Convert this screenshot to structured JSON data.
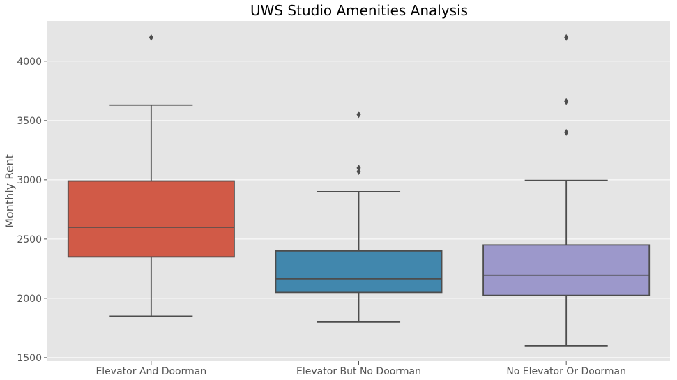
{
  "chart_data": {
    "type": "box",
    "title": "UWS Studio Amenities Analysis",
    "xlabel": "",
    "ylabel": "Monthly Rent",
    "ylim": [
      1470,
      4340
    ],
    "yticks": [
      1500,
      2000,
      2500,
      3000,
      3500,
      4000
    ],
    "grid": true,
    "background": "#e5e5e5",
    "categories": [
      "Elevator And Doorman",
      "Elevator But No Doorman",
      "No Elevator Or Doorman"
    ],
    "boxes": [
      {
        "category": "Elevator And Doorman",
        "color": "#d15a47",
        "whisker_low": 1850,
        "q1": 2350,
        "median": 2600,
        "q3": 2990,
        "whisker_high": 3630,
        "outliers": [
          4200
        ]
      },
      {
        "category": "Elevator But No Doorman",
        "color": "#4187ad",
        "whisker_low": 1800,
        "q1": 2050,
        "median": 2165,
        "q3": 2400,
        "whisker_high": 2900,
        "outliers": [
          3070,
          3100,
          3550
        ]
      },
      {
        "category": "No Elevator Or Doorman",
        "color": "#9c98cb",
        "whisker_low": 1600,
        "q1": 2025,
        "median": 2195,
        "q3": 2450,
        "whisker_high": 2995,
        "outliers": [
          3400,
          3660,
          4200
        ]
      }
    ]
  }
}
